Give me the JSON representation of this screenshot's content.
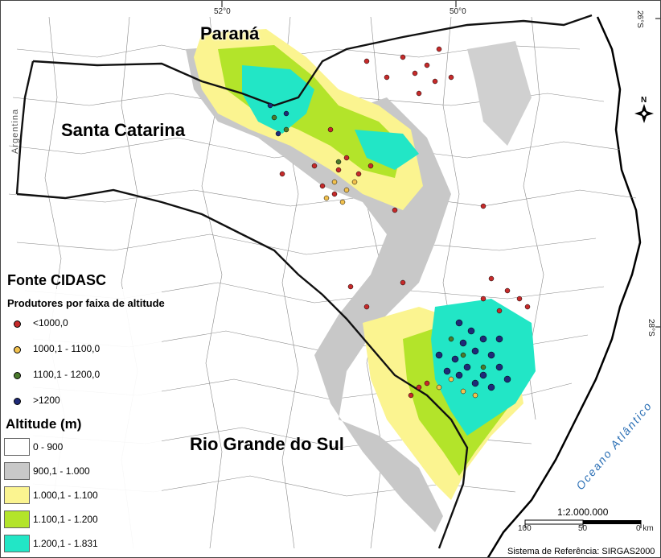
{
  "states": [
    "Paraná",
    "Santa Catarina",
    "Rio Grande do Sul"
  ],
  "country": "Argentina",
  "ocean": "Oceano Atlântico",
  "source": "Fonte CIDASC",
  "producers_legend": {
    "title": "Produtores por faixa de altitude",
    "items": [
      {
        "label": "<1000,0",
        "color": "#c62a2a"
      },
      {
        "label": "1000,1 - 1100,0",
        "color": "#f2c14e"
      },
      {
        "label": "1100,1 - 1200,0",
        "color": "#4a7a2c"
      },
      {
        "label": ">1200",
        "color": "#1e2a78"
      }
    ]
  },
  "altitude_legend": {
    "title": "Altitude (m)",
    "items": [
      {
        "label": "0 - 900",
        "color": "#ffffff"
      },
      {
        "label": "900,1 - 1.000",
        "color": "#c8c8c8"
      },
      {
        "label": "1.000,1 - 1.100",
        "color": "#fbf490"
      },
      {
        "label": "1.100,1 - 1.200",
        "color": "#b3e42a"
      },
      {
        "label": "1.200,1 - 1.831",
        "color": "#22e6c6"
      }
    ]
  },
  "grid_labels": {
    "lon_left": "52°0",
    "lon_right": "50°0",
    "lat_top": "26°S",
    "lat_bottom": "28°S"
  },
  "north": "N",
  "scale": {
    "ratio": "1:2.000.000",
    "ticks": [
      "100",
      "50",
      "0 km"
    ]
  },
  "reference_system": "Sistema de Referência: SIRGAS2000"
}
